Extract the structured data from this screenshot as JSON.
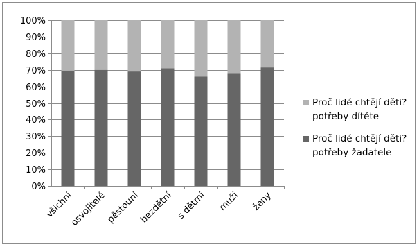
{
  "chart_data": {
    "type": "bar",
    "stacked": "percent",
    "title": "",
    "xlabel": "",
    "ylabel": "",
    "ylim": [
      0,
      100
    ],
    "y_tick_labels": [
      "0%",
      "10%",
      "20%",
      "30%",
      "40%",
      "50%",
      "60%",
      "70%",
      "80%",
      "90%",
      "100%"
    ],
    "grid": true,
    "legend_position": "right",
    "categories": [
      "všichni",
      "osvojitelé",
      "pěstouni",
      "bezdětní",
      "s dětmi",
      "muži",
      "ženy"
    ],
    "series": [
      {
        "name": "Proč lidé chtějí děti? potřeby žadatele",
        "color": "#666666",
        "values": [
          69.5,
          70,
          69,
          71,
          66,
          68,
          71.5
        ]
      },
      {
        "name": "Proč lidé chtějí děti? potřeby dítěte",
        "color": "#b3b3b3",
        "values": [
          30.5,
          30,
          31,
          29,
          34,
          32,
          28.5
        ]
      }
    ],
    "legend": [
      {
        "series_index": 1,
        "lines": [
          "Proč lidé chtějí děti?",
          "potřeby dítěte"
        ]
      },
      {
        "series_index": 0,
        "lines": [
          "Proč lidé chtějí děti?",
          "potřeby žadatele"
        ]
      }
    ]
  }
}
